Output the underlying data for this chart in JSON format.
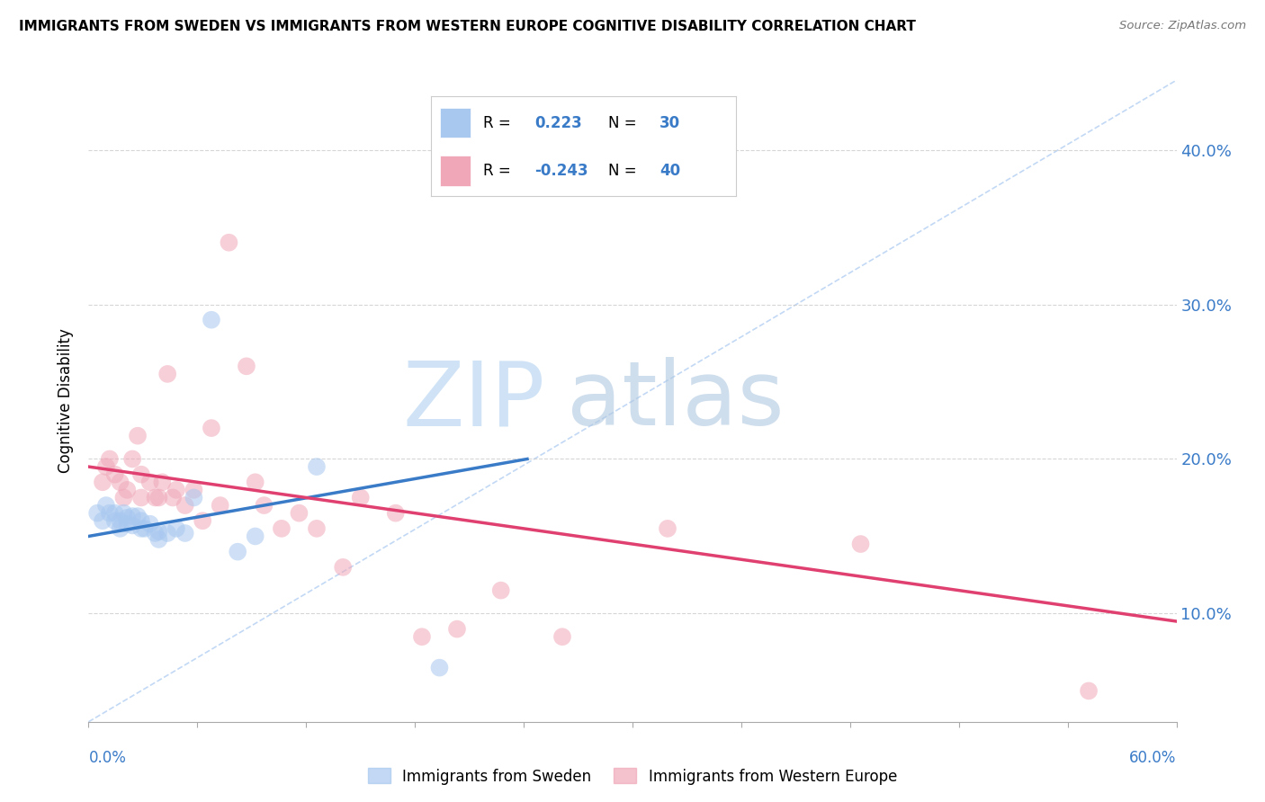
{
  "title": "IMMIGRANTS FROM SWEDEN VS IMMIGRANTS FROM WESTERN EUROPE COGNITIVE DISABILITY CORRELATION CHART",
  "source": "Source: ZipAtlas.com",
  "ylabel": "Cognitive Disability",
  "xlim": [
    0.0,
    0.62
  ],
  "ylim": [
    0.03,
    0.445
  ],
  "yticks": [
    0.1,
    0.2,
    0.3,
    0.4
  ],
  "ytick_labels": [
    "10.0%",
    "20.0%",
    "30.0%",
    "40.0%"
  ],
  "xticks": [
    0.0,
    0.062,
    0.124,
    0.186,
    0.248,
    0.31,
    0.372,
    0.434,
    0.496,
    0.558,
    0.62
  ],
  "blue_scatter_x": [
    0.005,
    0.008,
    0.01,
    0.012,
    0.015,
    0.015,
    0.018,
    0.018,
    0.02,
    0.022,
    0.022,
    0.025,
    0.025,
    0.028,
    0.03,
    0.03,
    0.032,
    0.035,
    0.038,
    0.04,
    0.04,
    0.045,
    0.05,
    0.055,
    0.06,
    0.07,
    0.085,
    0.095,
    0.13,
    0.2
  ],
  "blue_scatter_y": [
    0.165,
    0.16,
    0.17,
    0.165,
    0.16,
    0.165,
    0.16,
    0.155,
    0.165,
    0.162,
    0.158,
    0.163,
    0.157,
    0.163,
    0.16,
    0.155,
    0.155,
    0.158,
    0.152,
    0.153,
    0.148,
    0.152,
    0.155,
    0.152,
    0.175,
    0.29,
    0.14,
    0.15,
    0.195,
    0.065
  ],
  "pink_scatter_x": [
    0.008,
    0.01,
    0.012,
    0.015,
    0.018,
    0.02,
    0.022,
    0.025,
    0.028,
    0.03,
    0.03,
    0.035,
    0.038,
    0.04,
    0.042,
    0.045,
    0.048,
    0.05,
    0.055,
    0.06,
    0.065,
    0.07,
    0.075,
    0.08,
    0.09,
    0.095,
    0.1,
    0.11,
    0.12,
    0.13,
    0.145,
    0.155,
    0.175,
    0.19,
    0.21,
    0.235,
    0.27,
    0.33,
    0.44,
    0.57
  ],
  "pink_scatter_y": [
    0.185,
    0.195,
    0.2,
    0.19,
    0.185,
    0.175,
    0.18,
    0.2,
    0.215,
    0.19,
    0.175,
    0.185,
    0.175,
    0.175,
    0.185,
    0.255,
    0.175,
    0.18,
    0.17,
    0.18,
    0.16,
    0.22,
    0.17,
    0.34,
    0.26,
    0.185,
    0.17,
    0.155,
    0.165,
    0.155,
    0.13,
    0.175,
    0.165,
    0.085,
    0.09,
    0.115,
    0.085,
    0.155,
    0.145,
    0.05
  ],
  "blue_line_x": [
    0.0,
    0.25
  ],
  "blue_line_y": [
    0.15,
    0.2
  ],
  "pink_line_x": [
    0.0,
    0.62
  ],
  "pink_line_y": [
    0.195,
    0.095
  ],
  "ref_line_x": [
    0.0,
    0.62
  ],
  "ref_line_y": [
    0.03,
    0.445
  ],
  "blue_color": "#a8c8f0",
  "pink_color": "#f0a8b8",
  "blue_line_color": "#3a7bc8",
  "pink_line_color": "#e04070",
  "ref_line_color": "#a8c8f0",
  "watermark_zip_color": "#c8dff0",
  "watermark_atlas_color": "#b8cce0",
  "background_color": "#ffffff",
  "grid_color": "#cccccc",
  "legend_r_color": "#3a7bc8",
  "legend_n_color": "#3a7bc8"
}
